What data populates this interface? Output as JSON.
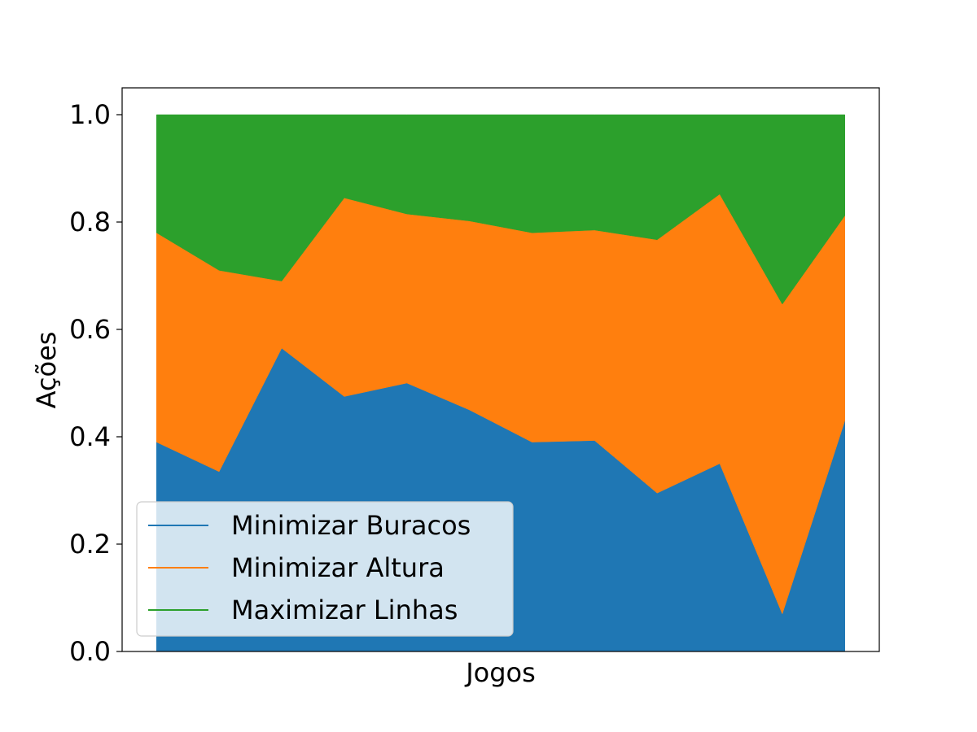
{
  "chart_data": {
    "type": "area",
    "stacked": true,
    "xlabel": "Jogos",
    "ylabel": "Ações",
    "ylim": [
      0,
      1.05
    ],
    "yticks": [
      0.0,
      0.2,
      0.4,
      0.6,
      0.8,
      1.0
    ],
    "ytick_labels": [
      "0.0",
      "0.2",
      "0.4",
      "0.6",
      "0.8",
      "1.0"
    ],
    "x": [
      1,
      2,
      3,
      4,
      5,
      6,
      7,
      8,
      9,
      10,
      11,
      12
    ],
    "xlim": [
      0.45,
      12.55
    ],
    "grid": false,
    "legend_position": "bottom-left",
    "series": [
      {
        "name": "Minimizar Buracos",
        "color": "#1f77b4",
        "values": [
          0.39,
          0.335,
          0.565,
          0.475,
          0.5,
          0.45,
          0.39,
          0.393,
          0.295,
          0.35,
          0.07,
          0.43
        ]
      },
      {
        "name": "Minimizar Altura",
        "color": "#ff7f0e",
        "values": [
          0.39,
          0.375,
          0.125,
          0.37,
          0.315,
          0.352,
          0.39,
          0.392,
          0.472,
          0.502,
          0.577,
          0.382
        ]
      },
      {
        "name": "Maximizar Linhas",
        "color": "#2ca02c",
        "values": [
          0.22,
          0.29,
          0.31,
          0.155,
          0.185,
          0.198,
          0.22,
          0.215,
          0.233,
          0.148,
          0.353,
          0.188
        ]
      }
    ]
  }
}
